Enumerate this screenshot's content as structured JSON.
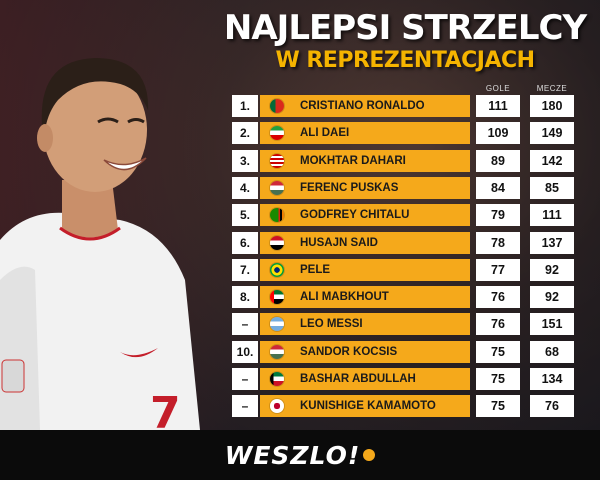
{
  "header": {
    "title": "NAJLEPSI STRZELCY",
    "subtitle": "W REPREZENTACJACH"
  },
  "columns": {
    "goals": "GOLE",
    "matches": "MECZE"
  },
  "players": [
    {
      "rank": "1.",
      "name": "CRISTIANO RONALDO",
      "goals": "111",
      "matches": "180",
      "flag": "portugal"
    },
    {
      "rank": "2.",
      "name": "ALI DAEI",
      "goals": "109",
      "matches": "149",
      "flag": "iran"
    },
    {
      "rank": "3.",
      "name": "MOKHTAR DAHARI",
      "goals": "89",
      "matches": "142",
      "flag": "malaysia"
    },
    {
      "rank": "4.",
      "name": "FERENC PUSKAS",
      "goals": "84",
      "matches": "85",
      "flag": "hungary"
    },
    {
      "rank": "5.",
      "name": "GODFREY CHITALU",
      "goals": "79",
      "matches": "111",
      "flag": "zambia"
    },
    {
      "rank": "6.",
      "name": "HUSAJN SAID",
      "goals": "78",
      "matches": "137",
      "flag": "iraq"
    },
    {
      "rank": "7.",
      "name": "PELE",
      "goals": "77",
      "matches": "92",
      "flag": "brazil"
    },
    {
      "rank": "8.",
      "name": "ALI MABKHOUT",
      "goals": "76",
      "matches": "92",
      "flag": "uae"
    },
    {
      "rank": "–",
      "name": "LEO MESSI",
      "goals": "76",
      "matches": "151",
      "flag": "argentina"
    },
    {
      "rank": "10.",
      "name": "SANDOR KOCSIS",
      "goals": "75",
      "matches": "68",
      "flag": "hungary"
    },
    {
      "rank": "–",
      "name": "BASHAR ABDULLAH",
      "goals": "75",
      "matches": "134",
      "flag": "kuwait"
    },
    {
      "rank": "–",
      "name": "KUNISHIGE KAMAMOTO",
      "goals": "75",
      "matches": "76",
      "flag": "japan"
    }
  ],
  "player_photo": {
    "shirt_number": "7"
  },
  "footer": {
    "logo": "WESZLO!"
  },
  "colors": {
    "accent": "#f5a91b",
    "subtitle": "#f5b400"
  }
}
